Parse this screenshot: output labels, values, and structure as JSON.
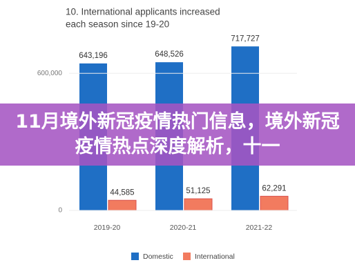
{
  "chart_data": {
    "type": "bar",
    "title": [
      "10. International applicants increased",
      "each season since 19-20"
    ],
    "categories": [
      "2019-20",
      "2020-21",
      "2021-22"
    ],
    "series": [
      {
        "name": "Domestic",
        "color": "#1f6fc5",
        "values": [
          643196,
          648526,
          717727
        ],
        "value_labels": [
          "643,196",
          "648,526",
          "717,727"
        ]
      },
      {
        "name": "International",
        "color": "#f27b5f",
        "values": [
          44585,
          51125,
          62291
        ],
        "value_labels": [
          "44,585",
          "51,125",
          "62,291"
        ]
      }
    ],
    "ylim": [
      0,
      800000
    ],
    "yticks": [
      0,
      {
        "value": 600000,
        "label": "600,000"
      }
    ],
    "grid": true,
    "legend": "bottom"
  },
  "banner": {
    "text": "11月境外新冠疫情热门信息，境外新冠疫情热点深度解析，十一"
  }
}
